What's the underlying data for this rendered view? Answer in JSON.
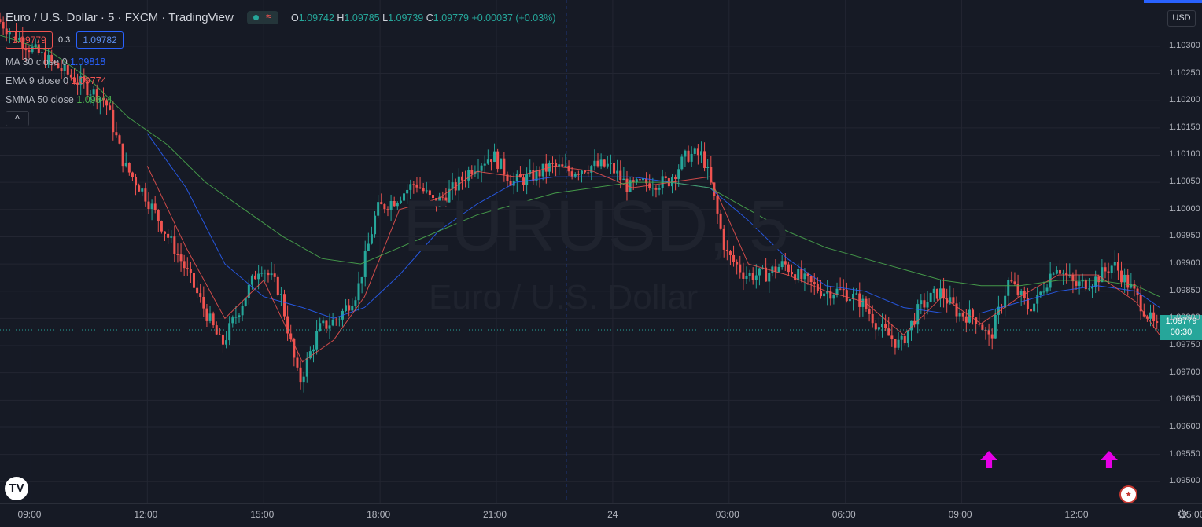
{
  "header": {
    "title": "Euro / U.S. Dollar · 5 · FXCM · TradingView",
    "ohlc": {
      "o_label": "O",
      "o": "1.09742",
      "h_label": "H",
      "h": "1.09785",
      "l_label": "L",
      "l": "1.09739",
      "c_label": "C",
      "c": "1.09779",
      "change": "+0.00037 (+0.03%)"
    },
    "status_icon": "≈"
  },
  "trade": {
    "sell": "1.09779",
    "spread": "0.3",
    "buy": "1.09782"
  },
  "indicators": [
    {
      "label": "MA 30 close 0",
      "value": "1.09818",
      "color": "#2962ff"
    },
    {
      "label": "EMA 9 close 0",
      "value": "1.09774",
      "color": "#ef5350"
    },
    {
      "label": "SMMA 50 close",
      "value": "1.09844",
      "color": "#4caf50"
    }
  ],
  "collapse_icon": "^",
  "currency": "USD",
  "current_price": {
    "value": "1.09779",
    "countdown": "00:30"
  },
  "watermark": {
    "symbol": "EURUSD, 5",
    "name": "Euro / U.S. Dollar"
  },
  "logo": "TV",
  "colors": {
    "up": "#26a69a",
    "down": "#ef5350",
    "background": "#161a25",
    "grid": "#232632",
    "arrow": "#e600e6"
  },
  "chart_data": {
    "type": "candlestick",
    "ylim": [
      1.0946,
      1.10385
    ],
    "yticks": [
      "1.10300",
      "1.10250",
      "1.10200",
      "1.10150",
      "1.10100",
      "1.10050",
      "1.10000",
      "1.09950",
      "1.09900",
      "1.09850",
      "1.09800",
      "1.09750",
      "1.09700",
      "1.09650",
      "1.09600",
      "1.09550",
      "1.09500"
    ],
    "xticks": [
      "09:00",
      "12:00",
      "15:00",
      "18:00",
      "21:00",
      "24",
      "03:00",
      "06:00",
      "09:00",
      "12:00",
      "15:00"
    ],
    "x_range_hours": [
      8.2,
      38.1
    ],
    "session_divider_hour": 22.8,
    "anchors": [
      [
        8.2,
        1.1035
      ],
      [
        9.0,
        1.103
      ],
      [
        10.0,
        1.1025
      ],
      [
        11.0,
        1.102
      ],
      [
        11.5,
        1.1008
      ],
      [
        12.0,
        1.1003
      ],
      [
        13.0,
        1.099
      ],
      [
        14.0,
        1.0975
      ],
      [
        15.0,
        1.099
      ],
      [
        15.5,
        1.0985
      ],
      [
        16.0,
        1.0968
      ],
      [
        16.5,
        1.0978
      ],
      [
        17.0,
        1.098
      ],
      [
        17.5,
        1.0985
      ],
      [
        18.0,
        1.1
      ],
      [
        18.5,
        1.1002
      ],
      [
        19.0,
        1.1005
      ],
      [
        19.5,
        1.1001
      ],
      [
        20.0,
        1.1004
      ],
      [
        20.5,
        1.1008
      ],
      [
        21.0,
        1.101
      ],
      [
        21.5,
        1.1005
      ],
      [
        22.0,
        1.1006
      ],
      [
        22.5,
        1.1008
      ],
      [
        23.0,
        1.1007
      ],
      [
        23.5,
        1.1008
      ],
      [
        24.0,
        1.1008
      ],
      [
        24.5,
        1.1004
      ],
      [
        25.0,
        1.1005
      ],
      [
        25.5,
        1.1005
      ],
      [
        26.0,
        1.101
      ],
      [
        26.4,
        1.101
      ],
      [
        26.6,
        1.1005
      ],
      [
        27.0,
        1.0992
      ],
      [
        27.5,
        1.0988
      ],
      [
        28.0,
        1.0988
      ],
      [
        28.5,
        1.099
      ],
      [
        29.0,
        1.0987
      ],
      [
        29.5,
        1.0985
      ],
      [
        30.0,
        1.0985
      ],
      [
        30.5,
        1.0983
      ],
      [
        31.0,
        1.0978
      ],
      [
        31.5,
        1.0975
      ],
      [
        32.0,
        1.0982
      ],
      [
        32.5,
        1.0985
      ],
      [
        33.0,
        1.0981
      ],
      [
        33.5,
        1.098
      ],
      [
        33.8,
        1.0976
      ],
      [
        34.3,
        1.0987
      ],
      [
        34.8,
        1.0982
      ],
      [
        35.0,
        1.0983
      ],
      [
        35.5,
        1.099
      ],
      [
        36.0,
        1.0986
      ],
      [
        36.5,
        1.0987
      ],
      [
        37.0,
        1.099
      ],
      [
        37.5,
        1.0985
      ],
      [
        38.1,
        1.0978
      ]
    ],
    "series": [
      {
        "name": "MA 30 close 0",
        "points": [
          [
            12.0,
            1.1014
          ],
          [
            13.0,
            1.1004
          ],
          [
            14.0,
            1.099
          ],
          [
            15.0,
            1.0984
          ],
          [
            16.0,
            1.0982
          ],
          [
            16.8,
            1.098
          ],
          [
            17.6,
            1.0982
          ],
          [
            18.5,
            1.0988
          ],
          [
            19.5,
            1.0996
          ],
          [
            20.5,
            1.1001
          ],
          [
            21.5,
            1.1005
          ],
          [
            22.5,
            1.1006
          ],
          [
            23.5,
            1.1006
          ],
          [
            24.5,
            1.1006
          ],
          [
            25.5,
            1.1005
          ],
          [
            26.5,
            1.1004
          ],
          [
            27.5,
            1.0998
          ],
          [
            28.5,
            1.0991
          ],
          [
            29.5,
            1.0986
          ],
          [
            30.5,
            1.0985
          ],
          [
            31.5,
            1.0982
          ],
          [
            32.5,
            1.0981
          ],
          [
            33.5,
            1.0981
          ],
          [
            34.5,
            1.0983
          ],
          [
            35.5,
            1.0985
          ],
          [
            36.5,
            1.0986
          ],
          [
            37.5,
            1.0985
          ],
          [
            38.1,
            1.0982
          ]
        ]
      },
      {
        "name": "EMA 9 close 0",
        "points": [
          [
            12.0,
            1.1008
          ],
          [
            13.0,
            1.0993
          ],
          [
            14.0,
            1.098
          ],
          [
            15.0,
            1.0987
          ],
          [
            16.0,
            1.0972
          ],
          [
            16.8,
            1.0976
          ],
          [
            17.6,
            1.0984
          ],
          [
            18.5,
            1.1
          ],
          [
            19.5,
            1.1002
          ],
          [
            20.5,
            1.1007
          ],
          [
            21.5,
            1.1006
          ],
          [
            22.5,
            1.1008
          ],
          [
            23.5,
            1.1007
          ],
          [
            24.5,
            1.1004
          ],
          [
            25.5,
            1.1005
          ],
          [
            26.5,
            1.1006
          ],
          [
            27.5,
            1.099
          ],
          [
            28.5,
            1.0988
          ],
          [
            29.5,
            1.0985
          ],
          [
            30.5,
            1.0983
          ],
          [
            31.5,
            1.0977
          ],
          [
            32.5,
            1.0984
          ],
          [
            33.5,
            1.0979
          ],
          [
            34.5,
            1.0984
          ],
          [
            35.5,
            1.0988
          ],
          [
            36.5,
            1.0988
          ],
          [
            37.5,
            1.0983
          ],
          [
            38.1,
            1.0977
          ]
        ]
      },
      {
        "name": "SMMA 50 close",
        "points": [
          [
            8.2,
            1.1032
          ],
          [
            9.5,
            1.1029
          ],
          [
            10.5,
            1.1024
          ],
          [
            11.5,
            1.1017
          ],
          [
            12.5,
            1.1012
          ],
          [
            13.5,
            1.1005
          ],
          [
            14.5,
            1.1
          ],
          [
            15.5,
            1.0995
          ],
          [
            16.5,
            1.0991
          ],
          [
            17.5,
            1.099
          ],
          [
            18.5,
            1.0993
          ],
          [
            19.5,
            1.0996
          ],
          [
            20.5,
            1.0999
          ],
          [
            21.5,
            1.1001
          ],
          [
            22.5,
            1.1003
          ],
          [
            23.5,
            1.1004
          ],
          [
            24.5,
            1.1005
          ],
          [
            25.5,
            1.1005
          ],
          [
            26.5,
            1.1004
          ],
          [
            27.5,
            1.1
          ],
          [
            28.5,
            1.0996
          ],
          [
            29.5,
            1.0993
          ],
          [
            30.5,
            1.0991
          ],
          [
            31.5,
            1.0989
          ],
          [
            32.5,
            1.0987
          ],
          [
            33.5,
            1.0986
          ],
          [
            34.5,
            1.0986
          ],
          [
            35.5,
            1.0987
          ],
          [
            36.5,
            1.0987
          ],
          [
            37.5,
            1.0986
          ],
          [
            38.1,
            1.0984
          ]
        ]
      }
    ],
    "arrows": [
      {
        "x_hour": 33.7
      },
      {
        "x_hour": 36.8
      }
    ]
  }
}
